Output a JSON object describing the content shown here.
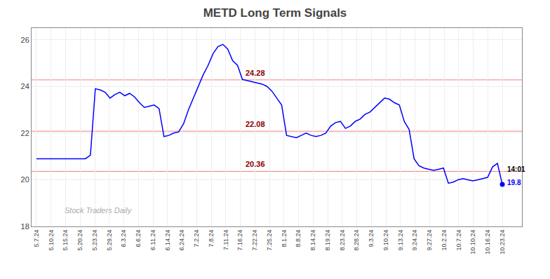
{
  "chart_data": {
    "type": "line",
    "title": "METD Long Term Signals",
    "x": [
      0,
      1,
      2,
      3,
      4,
      5,
      6,
      7,
      8,
      9,
      10,
      11,
      12,
      13,
      14,
      15,
      16,
      17,
      18,
      19,
      20,
      21,
      22,
      23,
      24,
      25,
      26,
      27,
      28,
      29,
      30,
      31,
      32,
      33,
      34,
      35,
      36,
      37,
      38,
      39,
      40,
      41,
      42,
      43,
      44,
      45,
      46,
      47,
      48,
      49,
      50,
      51,
      52,
      53,
      54,
      55,
      56,
      57,
      58,
      59,
      60,
      61,
      62,
      63,
      64,
      65,
      66,
      67,
      68,
      69,
      70,
      71,
      72,
      73,
      74,
      75,
      76,
      77,
      78,
      79,
      80,
      81,
      82,
      83,
      84,
      85,
      86,
      87,
      88,
      89,
      90,
      91,
      92,
      93,
      94,
      95
    ],
    "values": [
      20.9,
      20.9,
      20.9,
      20.9,
      20.9,
      20.9,
      20.9,
      20.9,
      20.9,
      20.9,
      20.9,
      21.05,
      23.9,
      23.85,
      23.75,
      23.5,
      23.65,
      23.75,
      23.6,
      23.7,
      23.55,
      23.3,
      23.1,
      23.15,
      23.2,
      23.05,
      21.85,
      21.9,
      22.0,
      22.05,
      22.4,
      23.0,
      23.5,
      24.0,
      24.5,
      24.9,
      25.4,
      25.7,
      25.8,
      25.6,
      25.1,
      24.9,
      24.3,
      24.25,
      24.2,
      24.15,
      24.1,
      24.0,
      23.8,
      23.5,
      23.2,
      21.9,
      21.85,
      21.8,
      21.9,
      22.0,
      21.9,
      21.85,
      21.9,
      22.0,
      22.3,
      22.45,
      22.5,
      22.2,
      22.3,
      22.5,
      22.6,
      22.8,
      22.9,
      23.1,
      23.3,
      23.5,
      23.45,
      23.3,
      23.2,
      22.5,
      22.15,
      20.9,
      20.6,
      20.5,
      20.45,
      20.4,
      20.45,
      20.5,
      19.85,
      19.9,
      20.0,
      20.05,
      20.0,
      19.95,
      20.0,
      20.05,
      20.1,
      20.55,
      20.7,
      19.8
    ],
    "color": "blue",
    "xlim": [
      -1,
      99
    ],
    "xticks": [
      {
        "value": 0,
        "label": "5.7.24"
      },
      {
        "value": 2.96875,
        "label": "5.10.24"
      },
      {
        "value": 5.9375,
        "label": "5.15.24"
      },
      {
        "value": 8.90625,
        "label": "5.20.24"
      },
      {
        "value": 11.875,
        "label": "5.23.24"
      },
      {
        "value": 14.84375,
        "label": "5.29.24"
      },
      {
        "value": 17.8125,
        "label": "6.3.24"
      },
      {
        "value": 20.78125,
        "label": "6.6.24"
      },
      {
        "value": 23.75,
        "label": "6.11.24"
      },
      {
        "value": 26.71875,
        "label": "6.14.24"
      },
      {
        "value": 29.6875,
        "label": "6.24.24"
      },
      {
        "value": 32.65625,
        "label": "7.2.24"
      },
      {
        "value": 35.625,
        "label": "7.8.24"
      },
      {
        "value": 38.59375,
        "label": "7.11.24"
      },
      {
        "value": 41.5625,
        "label": "7.16.24"
      },
      {
        "value": 44.53125,
        "label": "7.22.24"
      },
      {
        "value": 47.5,
        "label": "7.25.24"
      },
      {
        "value": 50.46875,
        "label": "8.1.24"
      },
      {
        "value": 53.4375,
        "label": "8.8.24"
      },
      {
        "value": 56.40625,
        "label": "8.14.24"
      },
      {
        "value": 59.375,
        "label": "8.19.24"
      },
      {
        "value": 62.34375,
        "label": "8.23.24"
      },
      {
        "value": 65.3125,
        "label": "8.28.24"
      },
      {
        "value": 68.28125,
        "label": "9.3.24"
      },
      {
        "value": 71.25,
        "label": "9.10.24"
      },
      {
        "value": 74.21875,
        "label": "9.13.24"
      },
      {
        "value": 77.1875,
        "label": "9.24.24"
      },
      {
        "value": 80.15625,
        "label": "9.27.24"
      },
      {
        "value": 83.125,
        "label": "10.2.24"
      },
      {
        "value": 86.09375,
        "label": "10.7.24"
      },
      {
        "value": 89.0625,
        "label": "10.10.24"
      },
      {
        "value": 92.03125,
        "label": "10.16.24"
      },
      {
        "value": 95,
        "label": "10.23.24"
      }
    ],
    "ylim": [
      18.0,
      26.5
    ],
    "yticks": [
      18,
      20,
      22,
      24,
      26
    ],
    "grid": true,
    "hlines": [
      {
        "value": 24.28,
        "label": "24.28",
        "color": "#f08080",
        "label_color": "darkred"
      },
      {
        "value": 22.08,
        "label": "22.08",
        "color": "#f08080",
        "label_color": "darkred"
      },
      {
        "value": 20.36,
        "label": "20.36",
        "color": "#f08080",
        "label_color": "darkred"
      }
    ],
    "annotations": [
      {
        "text": "14:01",
        "color": "black"
      },
      {
        "text": "19.8",
        "color": "blue"
      }
    ],
    "watermark": {
      "text": "Stock Traders Daily",
      "color": "#aaaaaa"
    }
  }
}
